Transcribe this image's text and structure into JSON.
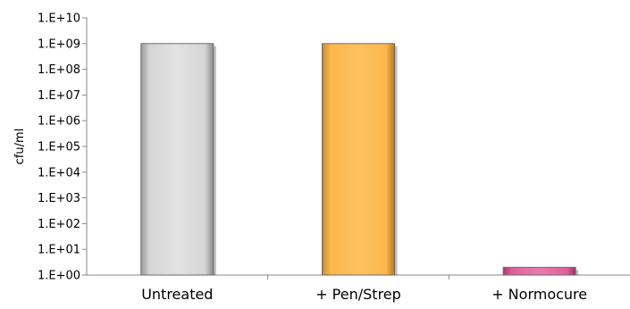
{
  "chart_data": {
    "type": "bar",
    "scale": "log",
    "title": "",
    "xlabel": "",
    "ylabel": "cfu/ml",
    "categories": [
      "Untreated",
      "+ Pen/Strep",
      "+ Normocure"
    ],
    "values": [
      1000000000,
      1000000000,
      2
    ],
    "bar_colors": [
      "#d9d9d9",
      "#fbb84d",
      "#e0609a"
    ],
    "ylim": [
      1,
      10000000000
    ],
    "yticks": [
      1,
      10,
      100,
      1000,
      10000,
      100000,
      1000000,
      10000000,
      100000000,
      1000000000,
      10000000000
    ],
    "ytick_labels": [
      "1.E+00",
      "1.E+01",
      "1.E+02",
      "1.E+03",
      "1.E+04",
      "1.E+05",
      "1.E+06",
      "1.E+07",
      "1.E+08",
      "1.E+09",
      "1.E+10"
    ],
    "grid": false,
    "legend": "none"
  }
}
